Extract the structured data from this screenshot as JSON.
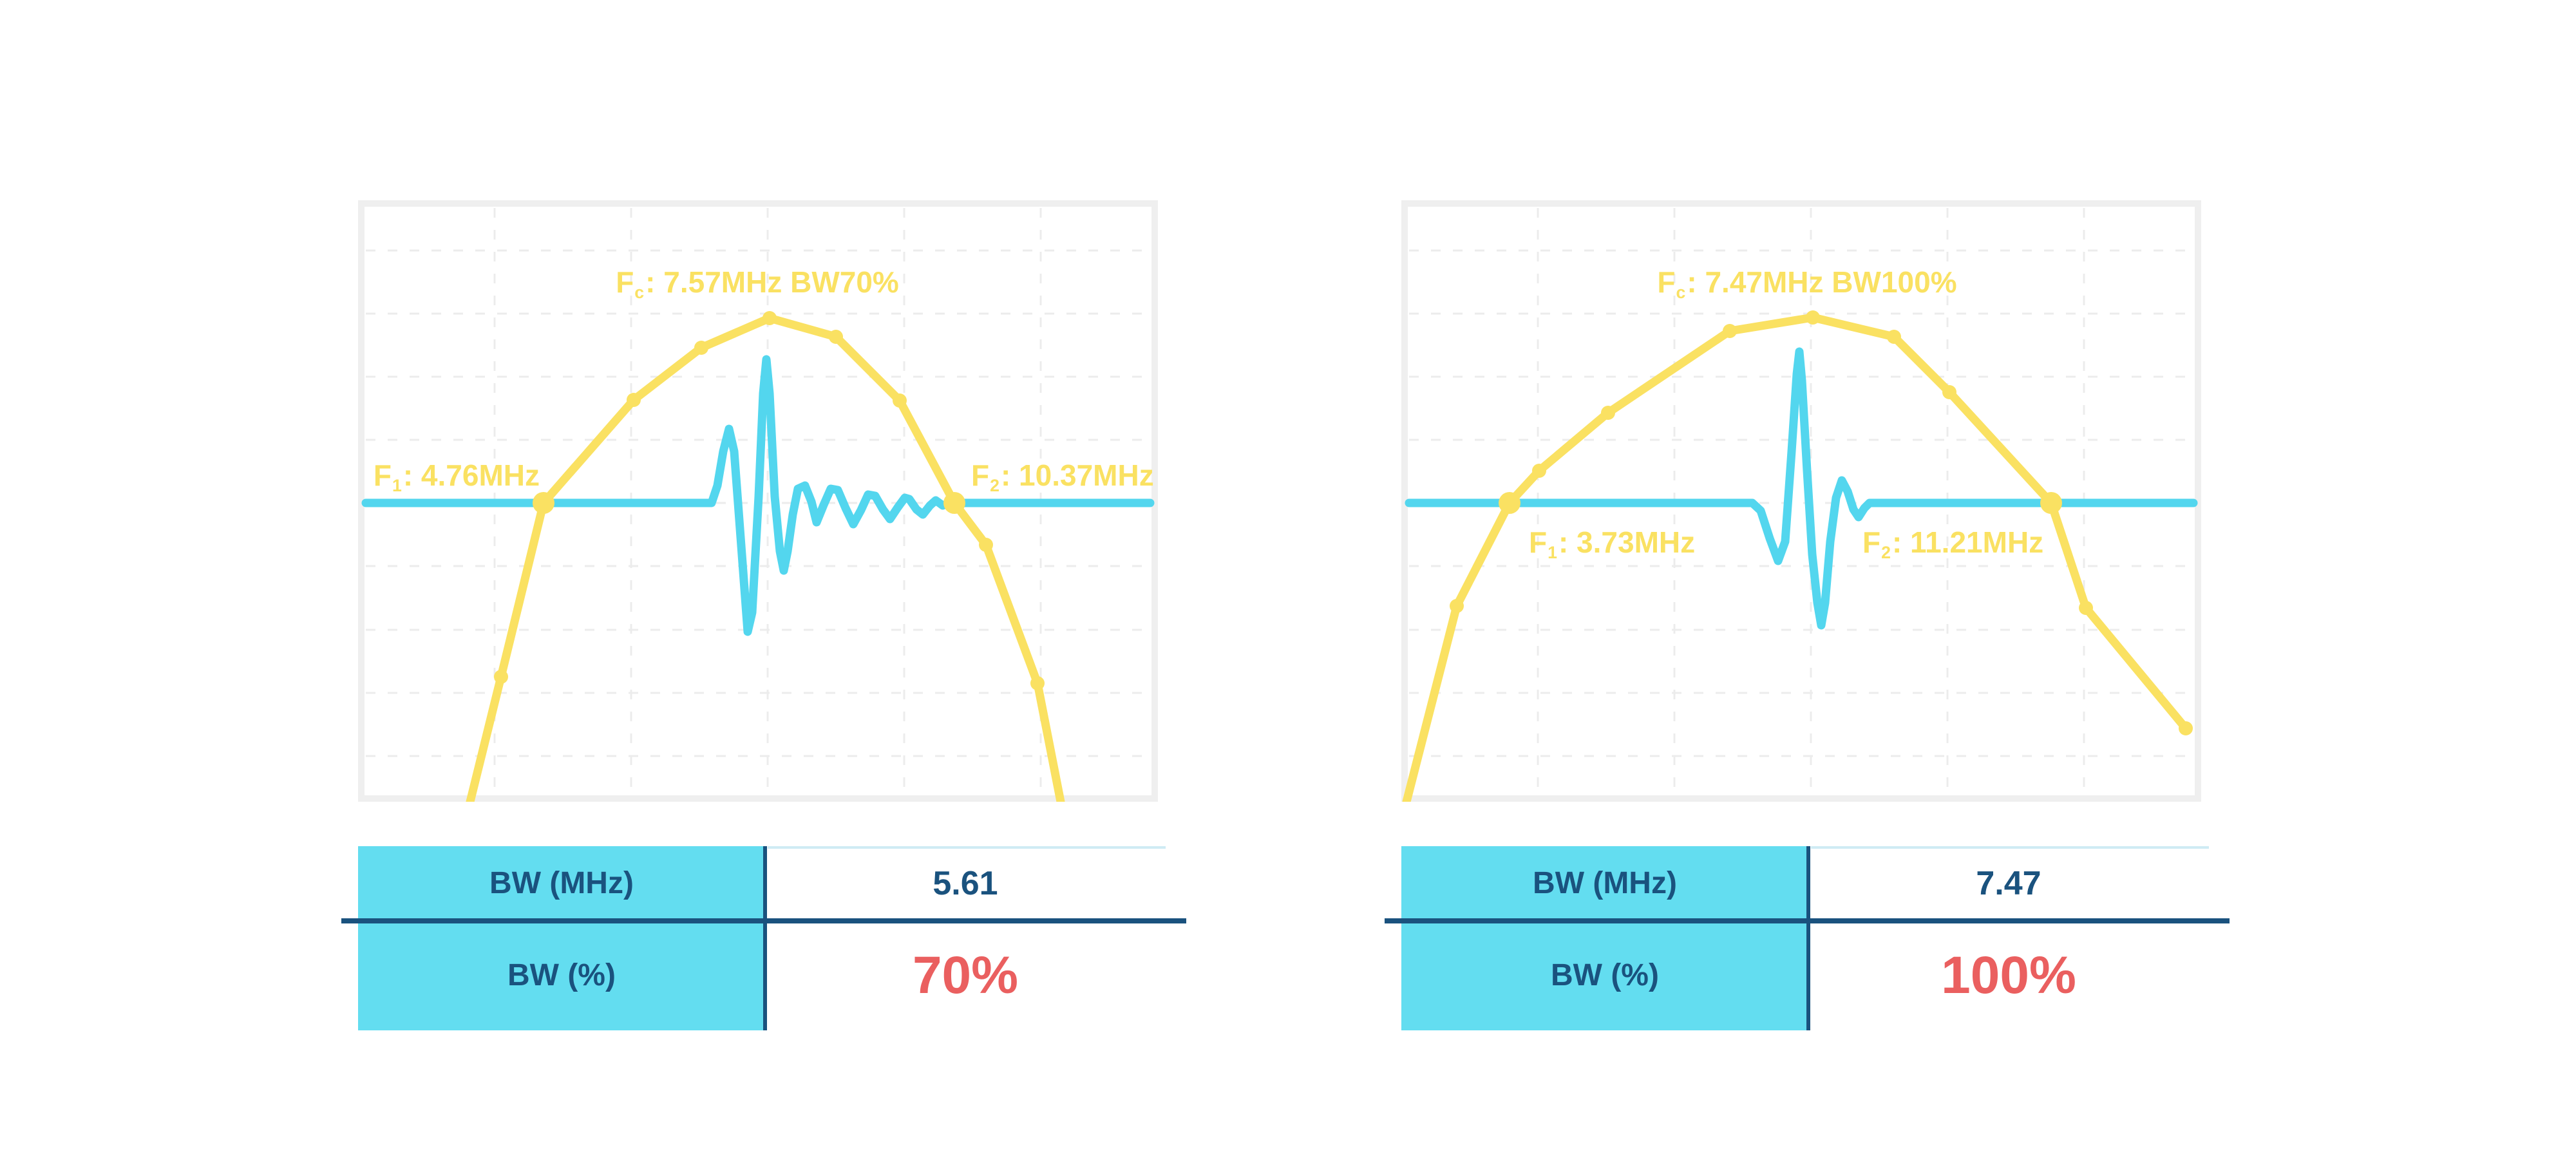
{
  "colors": {
    "yellow": "#FAE162",
    "cyan": "#53D6EE",
    "table_cyan": "#63DDF0",
    "navy": "#1A527E",
    "red": "#EA5F5F",
    "frame": "#EFEFEF",
    "grid": "#ECECEC",
    "topline": "#CFEBF4",
    "plot_bg": "#FFFFFF"
  },
  "panels": [
    {
      "name": "bandwidth-70-percent",
      "labels": {
        "fc": {
          "prefix": "F",
          "sub": "c",
          "rest": ": 7.57MHz BW70%"
        },
        "f1": {
          "prefix": "F",
          "sub": "1",
          "rest": ": 4.76MHz"
        },
        "f2": {
          "prefix": "F",
          "sub": "2",
          "rest": ": 10.37MHz"
        }
      },
      "table": {
        "row1_label": "BW (MHz)",
        "row1_value": "5.61",
        "row2_label": "BW (%)",
        "row2_value": "70%"
      }
    },
    {
      "name": "bandwidth-100-percent",
      "labels": {
        "fc": {
          "prefix": "F",
          "sub": "c",
          "rest": ": 7.47MHz BW100%"
        },
        "f1": {
          "prefix": "F",
          "sub": "1",
          "rest": ": 3.73MHz"
        },
        "f2": {
          "prefix": "F",
          "sub": "2",
          "rest": ": 11.21MHz"
        }
      },
      "table": {
        "row1_label": "BW (MHz)",
        "row1_value": "7.47",
        "row2_label": "BW (%)",
        "row2_value": "100%"
      }
    }
  ],
  "chart_data": [
    {
      "type": "line",
      "title": "Transducer frequency spectrum with pulse echo, 70% bandwidth",
      "xlabel": "",
      "ylabel": "",
      "legend": "none",
      "grid": "dashed",
      "annotations": [
        "Fc: 7.57MHz BW70%",
        "F1: 4.76MHz",
        "F2: 10.37MHz"
      ],
      "f1_MHz": 4.76,
      "fc_MHz": 7.57,
      "f2_MHz": 10.37,
      "bw_MHz": 5.61,
      "bw_pct": 70,
      "gridlines": {
        "v": [
          212,
          424,
          636,
          848,
          1060
        ],
        "h": [
          78,
          176,
          274,
          372,
          470,
          568,
          667,
          765,
          863
        ]
      },
      "series": [
        {
          "name": "frequency-spectrum",
          "color": "yellow",
          "points": [
            [
              174,
              934
            ],
            [
              222,
              740
            ],
            [
              288,
              470
            ],
            [
              428,
              310
            ],
            [
              533,
              229
            ],
            [
              639,
              183
            ],
            [
              742,
              212
            ],
            [
              841,
              311
            ],
            [
              926,
              470
            ],
            [
              975,
              535
            ],
            [
              1055,
              750
            ],
            [
              1091,
              934
            ]
          ],
          "markers": [
            {
              "x": 222,
              "y": 740,
              "size": "small"
            },
            {
              "x": 288,
              "y": 470,
              "size": "large"
            },
            {
              "x": 428,
              "y": 310,
              "size": "small"
            },
            {
              "x": 533,
              "y": 229,
              "size": "small"
            },
            {
              "x": 639,
              "y": 183,
              "size": "small"
            },
            {
              "x": 742,
              "y": 212,
              "size": "small"
            },
            {
              "x": 841,
              "y": 311,
              "size": "small"
            },
            {
              "x": 926,
              "y": 470,
              "size": "large"
            },
            {
              "x": 975,
              "y": 535,
              "size": "small"
            },
            {
              "x": 1055,
              "y": 750,
              "size": "small"
            }
          ]
        },
        {
          "name": "pulse-echo-waveform",
          "color": "cyan",
          "points": [
            [
              12,
              470
            ],
            [
              549,
              470
            ],
            [
              558,
              443
            ],
            [
              567,
              390
            ],
            [
              576,
              355
            ],
            [
              584,
              390
            ],
            [
              596,
              550
            ],
            [
              605,
              670
            ],
            [
              612,
              640
            ],
            [
              622,
              460
            ],
            [
              629,
              300
            ],
            [
              634,
              247
            ],
            [
              639,
              300
            ],
            [
              647,
              460
            ],
            [
              655,
              545
            ],
            [
              661,
              575
            ],
            [
              667,
              545
            ],
            [
              675,
              488
            ],
            [
              683,
              448
            ],
            [
              694,
              443
            ],
            [
              704,
              468
            ],
            [
              712,
              500
            ],
            [
              723,
              473
            ],
            [
              734,
              448
            ],
            [
              745,
              450
            ],
            [
              757,
              478
            ],
            [
              769,
              503
            ],
            [
              781,
              481
            ],
            [
              792,
              457
            ],
            [
              803,
              459
            ],
            [
              815,
              480
            ],
            [
              826,
              495
            ],
            [
              838,
              477
            ],
            [
              849,
              462
            ],
            [
              856,
              464
            ],
            [
              867,
              480
            ],
            [
              877,
              488
            ],
            [
              888,
              474
            ],
            [
              897,
              466
            ],
            [
              908,
              474
            ],
            [
              918,
              470
            ],
            [
              926,
              470
            ],
            [
              1230,
              470
            ]
          ],
          "markers": []
        }
      ]
    },
    {
      "type": "line",
      "title": "Transducer frequency spectrum with pulse echo, 100% bandwidth",
      "xlabel": "",
      "ylabel": "",
      "legend": "none",
      "grid": "dashed",
      "annotations": [
        "Fc: 7.47MHz BW100%",
        "F1: 3.73MHz",
        "F2: 11.21MHz"
      ],
      "f1_MHz": 3.73,
      "fc_MHz": 7.47,
      "f2_MHz": 11.21,
      "bw_MHz": 7.47,
      "bw_pct": 100,
      "gridlines": {
        "v": [
          212,
          424,
          636,
          848,
          1060
        ],
        "h": [
          78,
          176,
          274,
          372,
          470,
          568,
          667,
          765,
          863
        ]
      },
      "series": [
        {
          "name": "frequency-spectrum",
          "color": "yellow",
          "points": [
            [
              8,
              934
            ],
            [
              86,
              630
            ],
            [
              168,
              470
            ],
            [
              214,
              420
            ],
            [
              321,
              330
            ],
            [
              510,
              203
            ],
            [
              639,
              182
            ],
            [
              765,
              212
            ],
            [
              851,
              298
            ],
            [
              1009,
              470
            ],
            [
              1063,
              633
            ],
            [
              1218,
              820
            ]
          ],
          "markers": [
            {
              "x": 86,
              "y": 630,
              "size": "small"
            },
            {
              "x": 168,
              "y": 470,
              "size": "large"
            },
            {
              "x": 214,
              "y": 420,
              "size": "small"
            },
            {
              "x": 321,
              "y": 330,
              "size": "small"
            },
            {
              "x": 510,
              "y": 203,
              "size": "small"
            },
            {
              "x": 639,
              "y": 182,
              "size": "small"
            },
            {
              "x": 765,
              "y": 212,
              "size": "small"
            },
            {
              "x": 851,
              "y": 298,
              "size": "small"
            },
            {
              "x": 1009,
              "y": 470,
              "size": "large"
            },
            {
              "x": 1063,
              "y": 633,
              "size": "small"
            },
            {
              "x": 1218,
              "y": 820,
              "size": "small"
            }
          ]
        },
        {
          "name": "pulse-echo-waveform",
          "color": "cyan",
          "points": [
            [
              12,
              470
            ],
            [
              545,
              470
            ],
            [
              558,
              482
            ],
            [
              572,
              525
            ],
            [
              585,
              560
            ],
            [
              596,
              530
            ],
            [
              606,
              390
            ],
            [
              614,
              270
            ],
            [
              618,
              235
            ],
            [
              622,
              280
            ],
            [
              630,
              420
            ],
            [
              638,
              550
            ],
            [
              646,
              625
            ],
            [
              652,
              660
            ],
            [
              658,
              625
            ],
            [
              666,
              530
            ],
            [
              675,
              462
            ],
            [
              684,
              435
            ],
            [
              693,
              452
            ],
            [
              702,
              480
            ],
            [
              710,
              492
            ],
            [
              719,
              478
            ],
            [
              727,
              470
            ],
            [
              1230,
              470
            ]
          ],
          "markers": []
        }
      ]
    }
  ]
}
